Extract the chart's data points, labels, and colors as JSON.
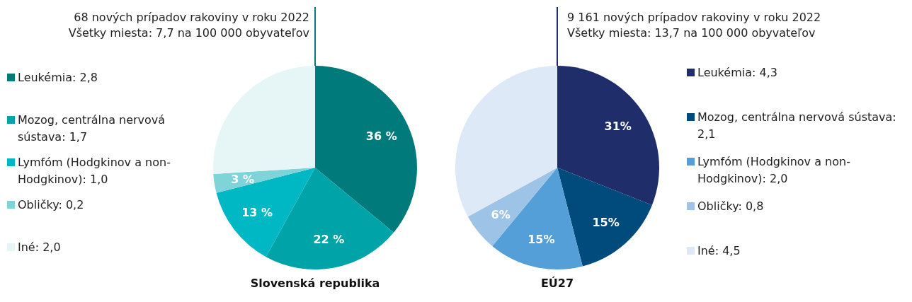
{
  "chart_data": [
    {
      "type": "pie",
      "title": "Slovenská republika",
      "subtitle": "68 nových prípadov rakoviny v roku 2022\nVšetky miesta: 7,7 na 100 000 obyvateľov",
      "legend": "left",
      "categories": [
        "Leukémia: 2,8",
        "Mozog, centrálna nervová sústava: 1,7",
        "Lymfóm (Hodgkinov a non-Hodgkinov): 1,0",
        "Obličky: 0,2",
        "Iné: 2,0"
      ],
      "values": [
        36,
        22,
        13,
        3,
        26
      ],
      "colors": [
        "#007a7a",
        "#00a3a8",
        "#00b8c4",
        "#7fd4da",
        "#e6f5f6"
      ],
      "value_labels": [
        "36 %",
        "22 %",
        "13 %",
        "3 %",
        null
      ]
    },
    {
      "type": "pie",
      "title": "EÚ27",
      "subtitle": "9 161 nových prípadov rakoviny v roku 2022\nVšetky miesta: 13,7 na 100 000 obyvateľov",
      "legend": "right",
      "categories": [
        "Leukémia: 4,3",
        "Mozog, centrálna nervová sústava: 2,1",
        "Lymfóm (Hodgkinov a non-Hodgkinov): 2,0",
        "Obličky: 0,8",
        "Iné: 4,5"
      ],
      "values": [
        31,
        15,
        15,
        6,
        33
      ],
      "colors": [
        "#1f2d6b",
        "#004a7c",
        "#559fd9",
        "#9dc3e6",
        "#dde9f6"
      ],
      "value_labels": [
        "31%",
        "15%",
        "15%",
        "6%",
        null
      ]
    }
  ]
}
